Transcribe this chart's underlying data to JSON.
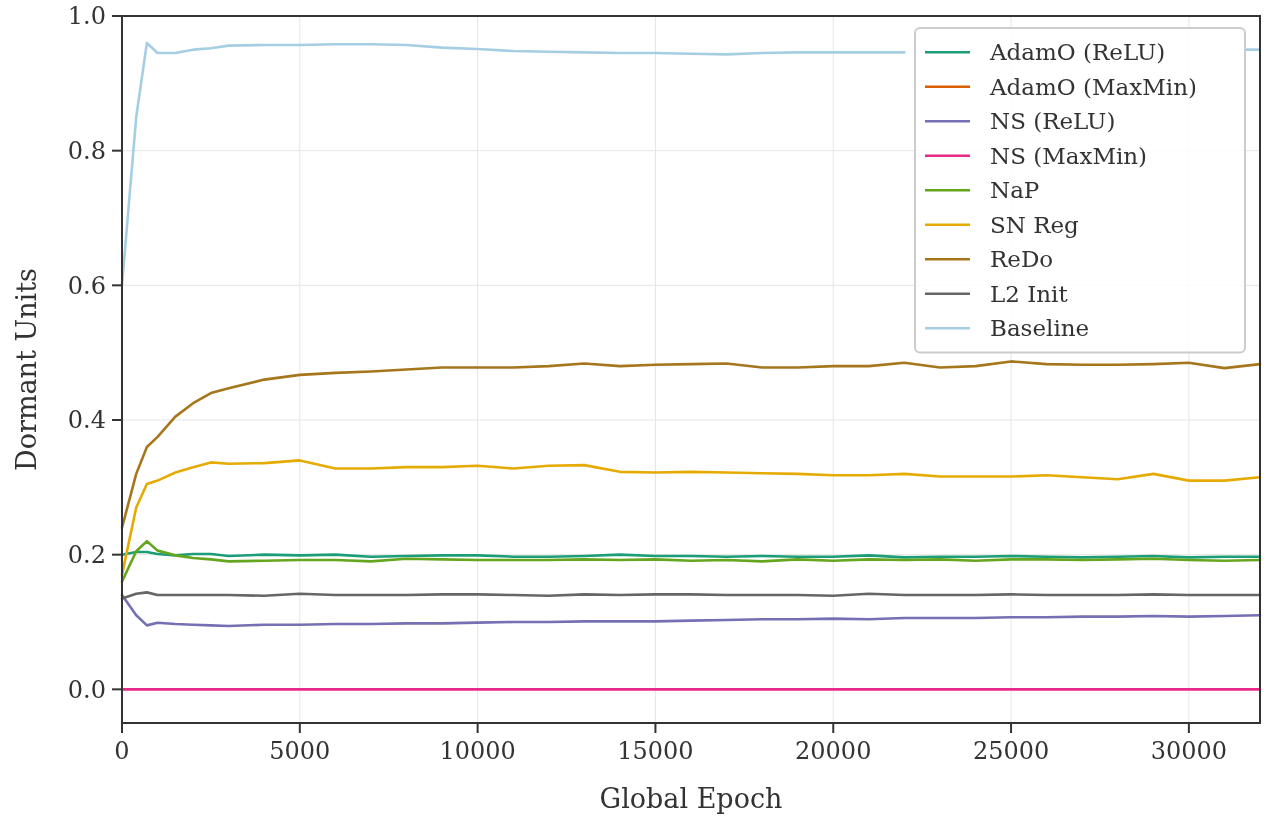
{
  "chart_data": {
    "type": "line",
    "xlabel": "Global Epoch",
    "ylabel": "Dormant Units",
    "x": [
      0,
      400,
      700,
      1000,
      1500,
      2000,
      2500,
      3000,
      4000,
      5000,
      6000,
      7000,
      8000,
      9000,
      10000,
      11000,
      12000,
      13000,
      14000,
      15000,
      16000,
      17000,
      18000,
      19000,
      20000,
      21000,
      22000,
      23000,
      24000,
      25000,
      26000,
      27000,
      28000,
      29000,
      30000,
      31000,
      32000
    ],
    "series": [
      {
        "name": "AdamO (ReLU)",
        "color": "#1b9e77",
        "values": [
          0.2,
          0.204,
          0.204,
          0.201,
          0.199,
          0.201,
          0.201,
          0.198,
          0.2,
          0.199,
          0.2,
          0.197,
          0.198,
          0.199,
          0.199,
          0.197,
          0.197,
          0.198,
          0.2,
          0.198,
          0.198,
          0.197,
          0.198,
          0.197,
          0.197,
          0.199,
          0.196,
          0.197,
          0.197,
          0.198,
          0.197,
          0.196,
          0.197,
          0.198,
          0.196,
          0.197,
          0.197
        ]
      },
      {
        "name": "AdamO (MaxMin)",
        "color": "#d95f02",
        "values": [
          null,
          null,
          null,
          null,
          null,
          null,
          null,
          null,
          null,
          null,
          null,
          null,
          null,
          null,
          null,
          null,
          null,
          null,
          null,
          null,
          null,
          null,
          null,
          null,
          null,
          null,
          null,
          null,
          null,
          null,
          null,
          null,
          null,
          null,
          null,
          null,
          null
        ]
      },
      {
        "name": "NS (ReLU)",
        "color": "#7570b3",
        "values": [
          0.14,
          0.11,
          0.095,
          0.099,
          0.097,
          0.096,
          0.095,
          0.094,
          0.096,
          0.096,
          0.097,
          0.097,
          0.098,
          0.098,
          0.099,
          0.1,
          0.1,
          0.101,
          0.101,
          0.101,
          0.102,
          0.103,
          0.104,
          0.104,
          0.105,
          0.104,
          0.106,
          0.106,
          0.106,
          0.107,
          0.107,
          0.108,
          0.108,
          0.109,
          0.108,
          0.109,
          0.11
        ]
      },
      {
        "name": "NS (MaxMin)",
        "color": "#e7298a",
        "values": [
          0,
          0,
          0,
          0,
          0,
          0,
          0,
          0,
          0,
          0,
          0,
          0,
          0,
          0,
          0,
          0,
          0,
          0,
          0,
          0,
          0,
          0,
          0,
          0,
          0,
          0,
          0,
          0,
          0,
          0,
          0,
          0,
          0,
          0,
          0,
          0,
          0
        ]
      },
      {
        "name": "NaP",
        "color": "#66a61e",
        "values": [
          0.16,
          0.205,
          0.22,
          0.206,
          0.199,
          0.195,
          0.193,
          0.19,
          0.191,
          0.192,
          0.192,
          0.19,
          0.194,
          0.193,
          0.192,
          0.192,
          0.192,
          0.193,
          0.192,
          0.193,
          0.191,
          0.192,
          0.19,
          0.193,
          0.191,
          0.193,
          0.192,
          0.193,
          0.191,
          0.193,
          0.193,
          0.192,
          0.193,
          0.194,
          0.192,
          0.191,
          0.192
        ]
      },
      {
        "name": "SN Reg",
        "color": "#e6ab02",
        "values": [
          0.17,
          0.27,
          0.305,
          0.31,
          0.322,
          0.33,
          0.337,
          0.335,
          0.336,
          0.34,
          0.328,
          0.328,
          0.33,
          0.33,
          0.332,
          0.328,
          0.332,
          0.333,
          0.323,
          0.322,
          0.323,
          0.322,
          0.321,
          0.32,
          0.318,
          0.318,
          0.32,
          0.316,
          0.316,
          0.316,
          0.318,
          0.315,
          0.312,
          0.32,
          0.31,
          0.31,
          0.315
        ]
      },
      {
        "name": "ReDo",
        "color": "#a6761d",
        "values": [
          0.24,
          0.32,
          0.36,
          0.375,
          0.405,
          0.425,
          0.44,
          0.447,
          0.46,
          0.467,
          0.47,
          0.472,
          0.475,
          0.478,
          0.478,
          0.478,
          0.48,
          0.484,
          0.48,
          0.482,
          0.483,
          0.484,
          0.478,
          0.478,
          0.48,
          0.48,
          0.485,
          0.478,
          0.48,
          0.487,
          0.483,
          0.482,
          0.482,
          0.483,
          0.485,
          0.477,
          0.483
        ]
      },
      {
        "name": "L2 Init",
        "color": "#666666",
        "values": [
          0.135,
          0.142,
          0.144,
          0.14,
          0.14,
          0.14,
          0.14,
          0.14,
          0.139,
          0.142,
          0.14,
          0.14,
          0.14,
          0.141,
          0.141,
          0.14,
          0.139,
          0.141,
          0.14,
          0.141,
          0.141,
          0.14,
          0.14,
          0.14,
          0.139,
          0.142,
          0.14,
          0.14,
          0.14,
          0.141,
          0.14,
          0.14,
          0.14,
          0.141,
          0.14,
          0.14,
          0.14
        ]
      },
      {
        "name": "Baseline",
        "color": "#a6cee3",
        "x": [
          0,
          400,
          700,
          1000,
          1500,
          2000,
          2500,
          3000,
          4000,
          5000,
          6000,
          7000,
          8000,
          9000,
          10000,
          11000,
          12000,
          13000,
          14000,
          15000,
          16000,
          17000,
          18000,
          19000,
          20000,
          21000,
          22000,
          22200,
          31600,
          32000
        ],
        "values": [
          0.6,
          0.85,
          0.96,
          0.945,
          0.945,
          0.95,
          0.952,
          0.956,
          0.957,
          0.957,
          0.958,
          0.958,
          0.957,
          0.953,
          0.951,
          0.948,
          0.947,
          0.946,
          0.945,
          0.945,
          0.944,
          0.943,
          0.945,
          0.946,
          0.946,
          0.946,
          0.946,
          null,
          0.95,
          0.95
        ]
      }
    ],
    "xlim": [
      0,
      32000
    ],
    "ylim": [
      -0.05,
      1.0
    ],
    "xticks": [
      0,
      5000,
      10000,
      15000,
      20000,
      25000,
      30000
    ],
    "yticks": [
      {
        "value": 0,
        "label": "0.0"
      },
      {
        "value": 0.2,
        "label": "0.2"
      },
      {
        "value": 0.4,
        "label": "0.4"
      },
      {
        "value": 0.6,
        "label": "0.6"
      },
      {
        "value": 0.8,
        "label": "0.8"
      },
      {
        "value": 1.0,
        "label": "1.0"
      }
    ],
    "grid": true,
    "legend": "top right",
    "line_style": "solid",
    "marker": "none"
  }
}
